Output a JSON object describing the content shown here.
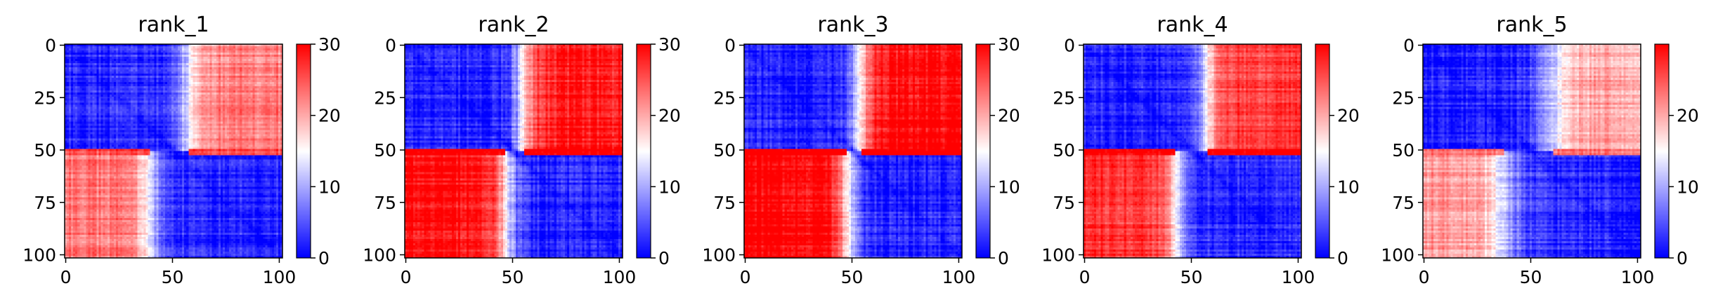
{
  "chart_data": [
    {
      "type": "heatmap",
      "title": "rank_1",
      "n": 102,
      "x_ticks": [
        0,
        50,
        100
      ],
      "y_ticks": [
        0,
        25,
        50,
        75,
        100
      ],
      "colorbar": {
        "min": 0,
        "max": 30,
        "ticks": [
          0,
          10,
          20,
          30
        ],
        "colormap": "bwr"
      },
      "blocks": {
        "split": 51,
        "off_diag_level": 23,
        "boundary_x": 40,
        "boundary_y": 57,
        "boundary_width": 4
      }
    },
    {
      "type": "heatmap",
      "title": "rank_2",
      "n": 102,
      "x_ticks": [
        0,
        50,
        100
      ],
      "y_ticks": [
        0,
        25,
        50,
        75,
        100
      ],
      "colorbar": {
        "min": 0,
        "max": 30,
        "ticks": [
          0,
          10,
          20,
          30
        ],
        "colormap": "bwr"
      },
      "blocks": {
        "split": 51,
        "off_diag_level": 29,
        "boundary_x": 47,
        "boundary_y": 55,
        "boundary_width": 3
      }
    },
    {
      "type": "heatmap",
      "title": "rank_3",
      "n": 102,
      "x_ticks": [
        0,
        50,
        100
      ],
      "y_ticks": [
        0,
        25,
        50,
        75,
        100
      ],
      "colorbar": {
        "min": 0,
        "max": 30,
        "ticks": [
          0,
          10,
          20,
          30
        ],
        "colormap": "bwr"
      },
      "blocks": {
        "split": 51,
        "off_diag_level": 30,
        "boundary_x": 48,
        "boundary_y": 54,
        "boundary_width": 3
      }
    },
    {
      "type": "heatmap",
      "title": "rank_4",
      "n": 102,
      "x_ticks": [
        0,
        50,
        100
      ],
      "y_ticks": [
        0,
        25,
        50,
        75,
        100
      ],
      "colorbar": {
        "min": 0,
        "max": 30,
        "ticks": [
          0,
          10,
          20
        ],
        "colormap": "bwr"
      },
      "blocks": {
        "split": 51,
        "off_diag_level": 27,
        "boundary_x": 43,
        "boundary_y": 57,
        "boundary_width": 3
      }
    },
    {
      "type": "heatmap",
      "title": "rank_5",
      "n": 102,
      "x_ticks": [
        0,
        50,
        100
      ],
      "y_ticks": [
        0,
        25,
        50,
        75,
        100
      ],
      "colorbar": {
        "min": 0,
        "max": 30,
        "ticks": [
          0,
          10,
          20
        ],
        "colormap": "bwr"
      },
      "blocks": {
        "split": 51,
        "off_diag_level": 21,
        "boundary_x": 38,
        "boundary_y": 60,
        "boundary_width": 5
      }
    }
  ]
}
